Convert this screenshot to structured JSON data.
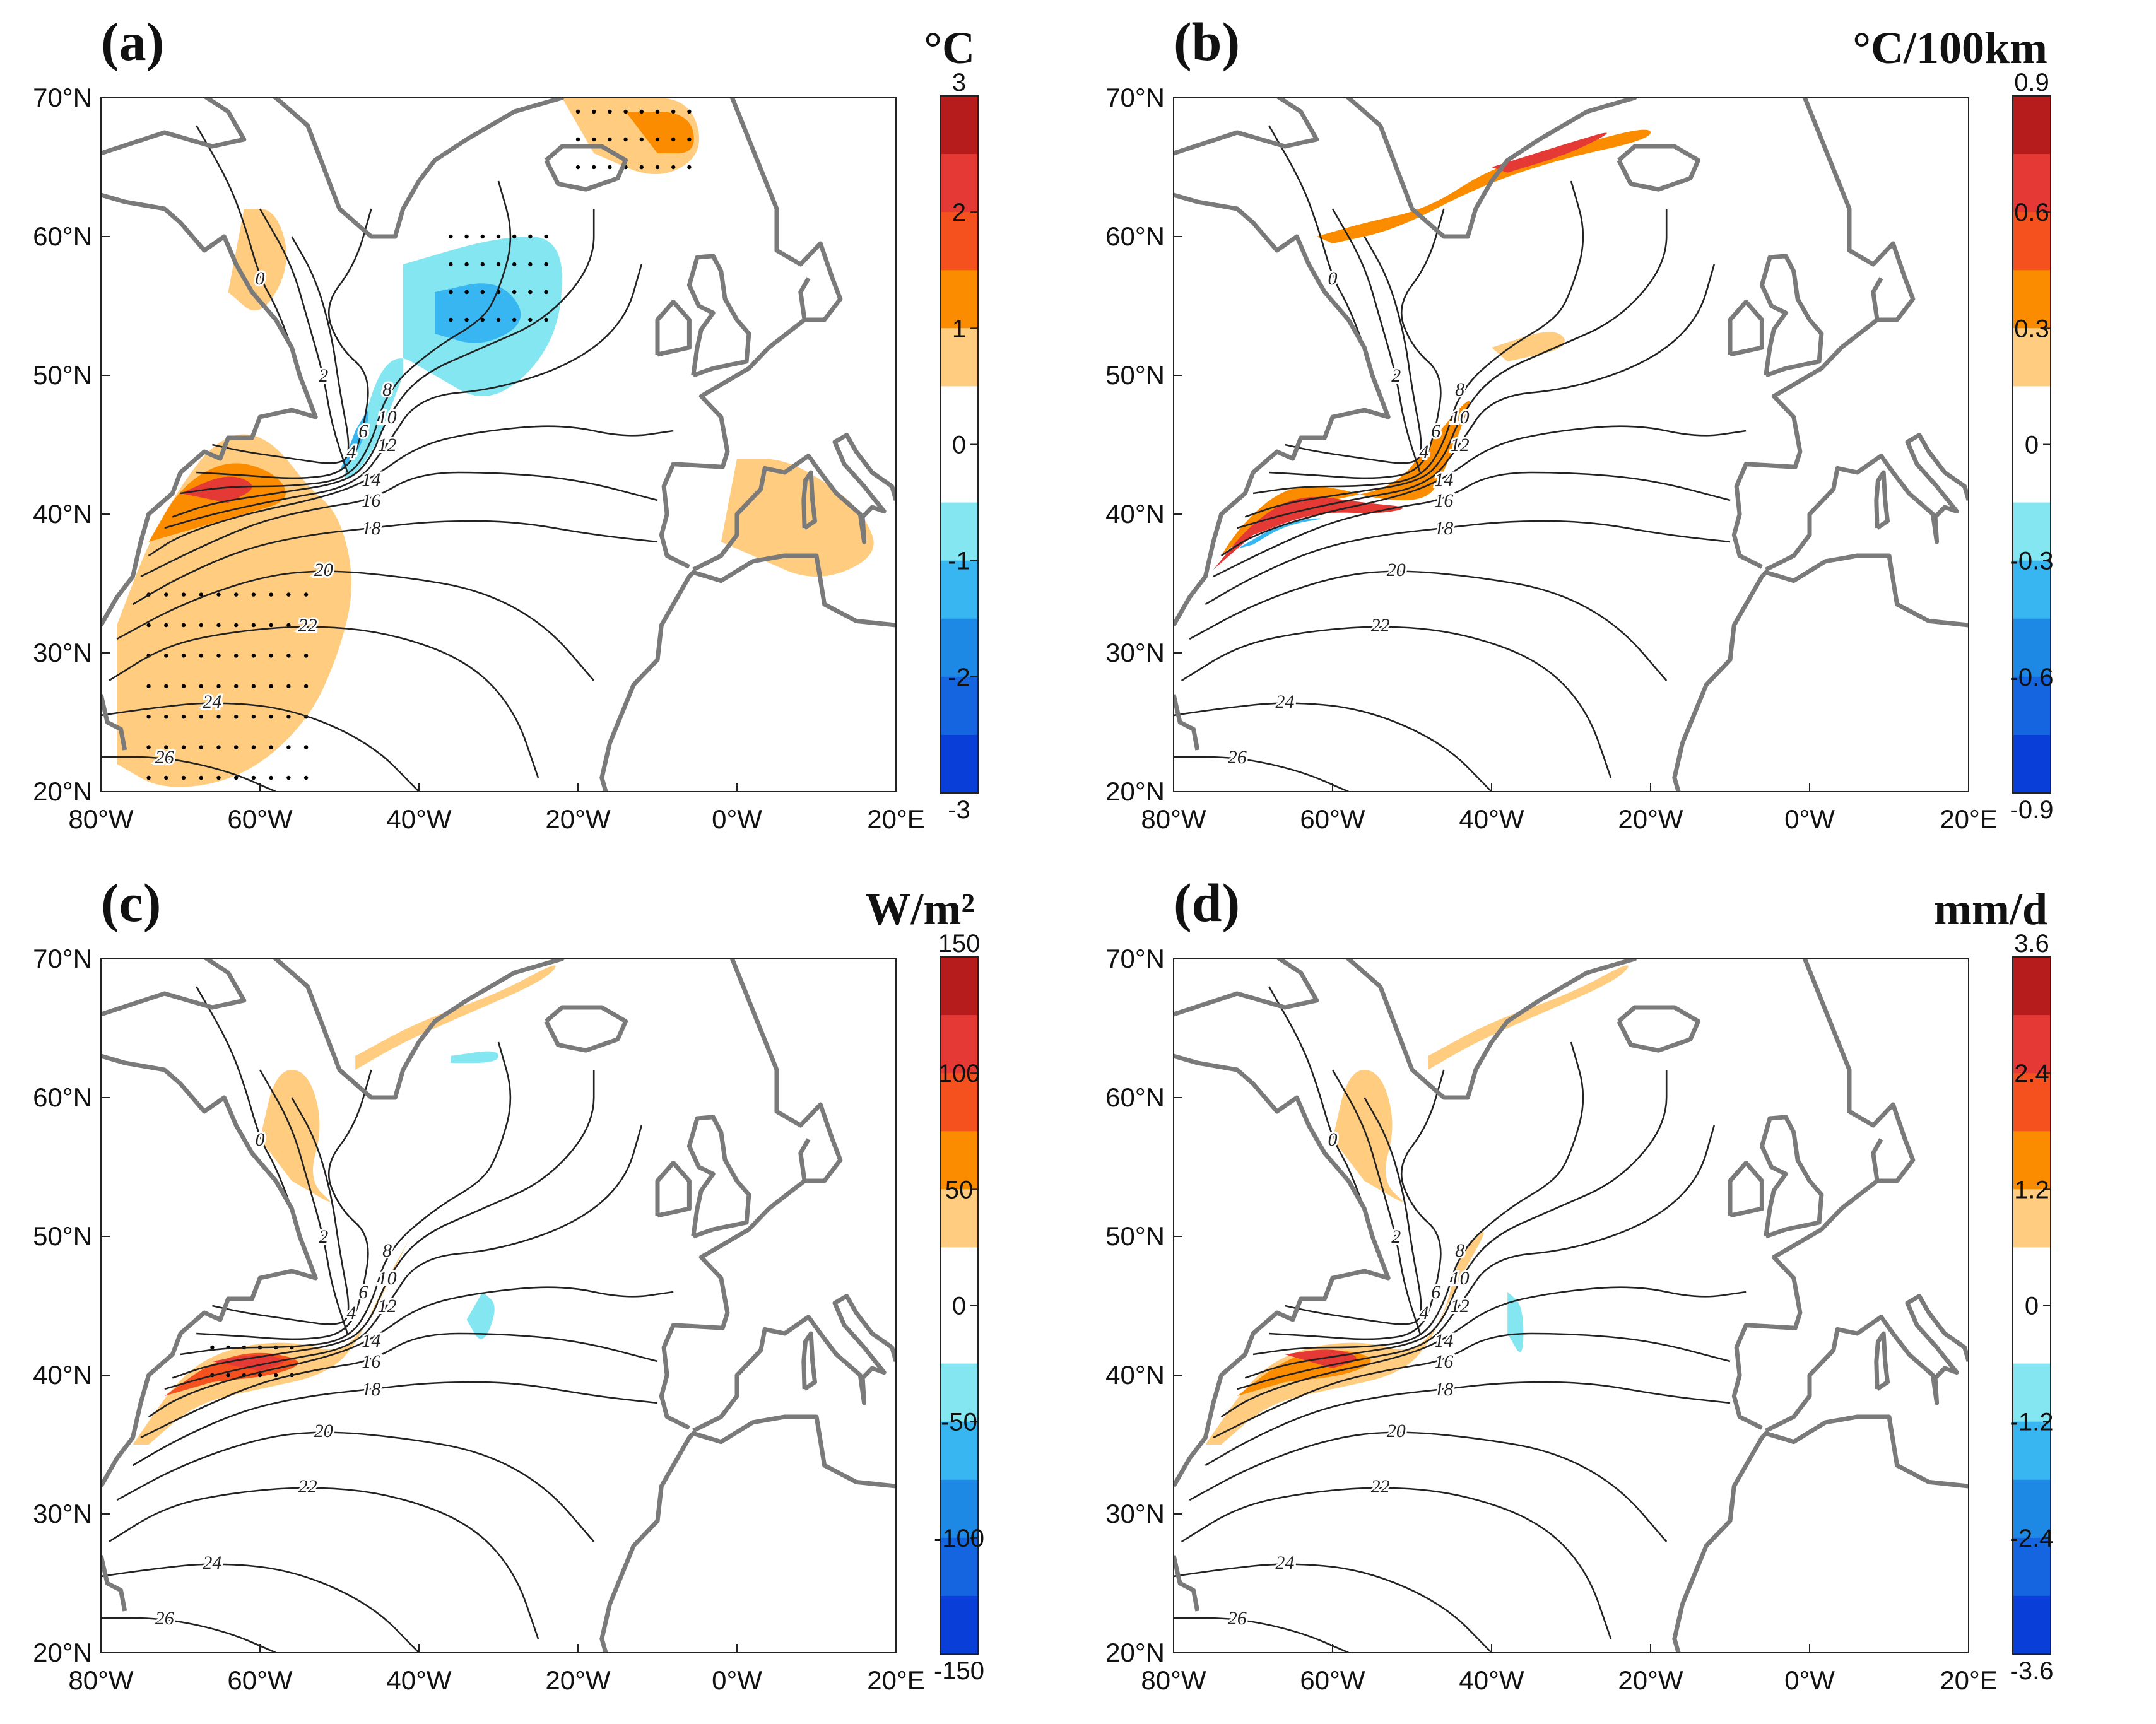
{
  "figure": {
    "panels": [
      {
        "id": "a",
        "label": "(a)",
        "unit": "°C",
        "colorbar": {
          "ticks": [
            "3",
            "2",
            "1",
            "0",
            "-1",
            "-2",
            "-3"
          ]
        },
        "pattern": "sst"
      },
      {
        "id": "b",
        "label": "(b)",
        "unit": "°C/100km",
        "colorbar": {
          "ticks": [
            "0.9",
            "0.6",
            "0.3",
            "0",
            "-0.3",
            "-0.6",
            "-0.9"
          ]
        },
        "pattern": "front"
      },
      {
        "id": "c",
        "label": "(c)",
        "unit": "W/m²",
        "colorbar": {
          "ticks": [
            "150",
            "100",
            "50",
            "0",
            "-50",
            "-100",
            "-150"
          ]
        },
        "pattern": "flux"
      },
      {
        "id": "d",
        "label": "(d)",
        "unit": "mm/d",
        "colorbar": {
          "ticks": [
            "3.6",
            "2.4",
            "1.2",
            "0",
            "-1.2",
            "-2.4",
            "-3.6"
          ]
        },
        "pattern": "precip"
      }
    ],
    "x_ticks": [
      "80°W",
      "60°W",
      "40°W",
      "20°W",
      "0°W",
      "20°E"
    ],
    "y_ticks": [
      "70°N",
      "60°N",
      "50°N",
      "40°N",
      "30°N",
      "20°N"
    ],
    "colorbar_colors": [
      "#b71c1c",
      "#e53935",
      "#f4511e",
      "#fb8c00",
      "#ffcc80",
      "#ffffff",
      "#ffffff",
      "#84e6f0",
      "#38b6f2",
      "#1e88e5",
      "#1565e0",
      "#0a3ed8"
    ],
    "contour_labels": [
      "0",
      "2",
      "4",
      "6",
      "8",
      "10",
      "12",
      "14",
      "16",
      "18",
      "20",
      "22",
      "24",
      "26"
    ]
  }
}
